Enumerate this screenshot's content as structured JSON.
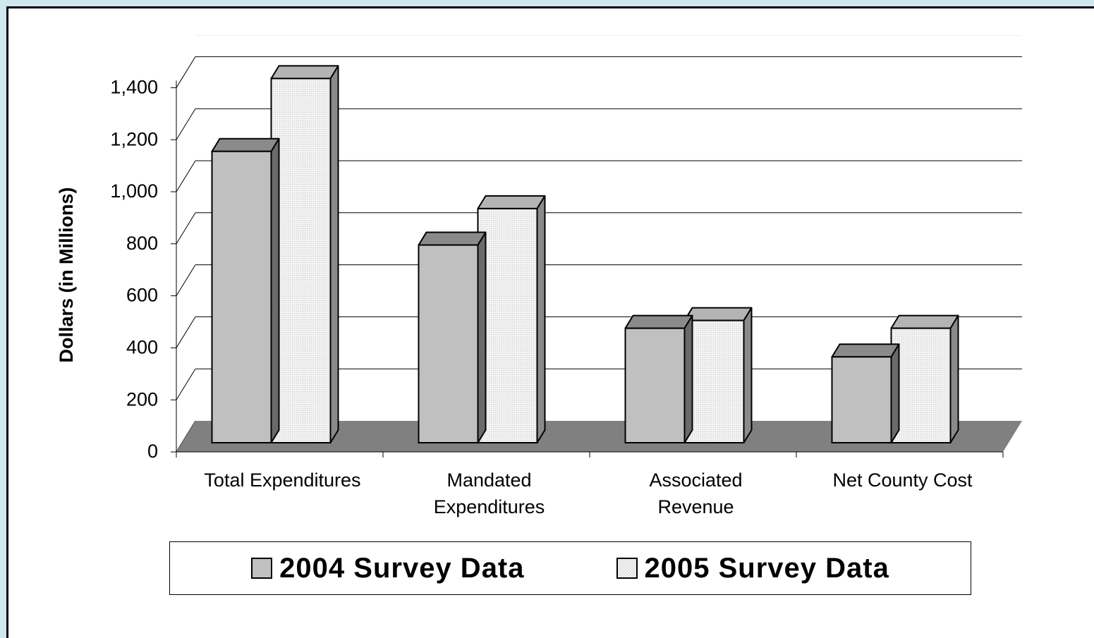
{
  "chart_data": {
    "type": "bar",
    "title": "",
    "xlabel": "",
    "ylabel": "Dollars (in Millions)",
    "ylim": [
      0,
      1400
    ],
    "yticks": [
      "0",
      "200",
      "400",
      "600",
      "800",
      "1,000",
      "1,200",
      "1,400"
    ],
    "grid": true,
    "legend_position": "bottom",
    "categories": [
      [
        "Total Expenditures"
      ],
      [
        "Mandated",
        "Expenditures"
      ],
      [
        "Associated",
        "Revenue"
      ],
      [
        "Net County Cost"
      ]
    ],
    "series": [
      {
        "name": "2004 Survey Data",
        "values": [
          1120,
          760,
          440,
          330
        ],
        "color": "#c0c0c0"
      },
      {
        "name": "2005 Survey Data",
        "values": [
          1400,
          900,
          470,
          440
        ],
        "color": "#ececec"
      }
    ]
  }
}
